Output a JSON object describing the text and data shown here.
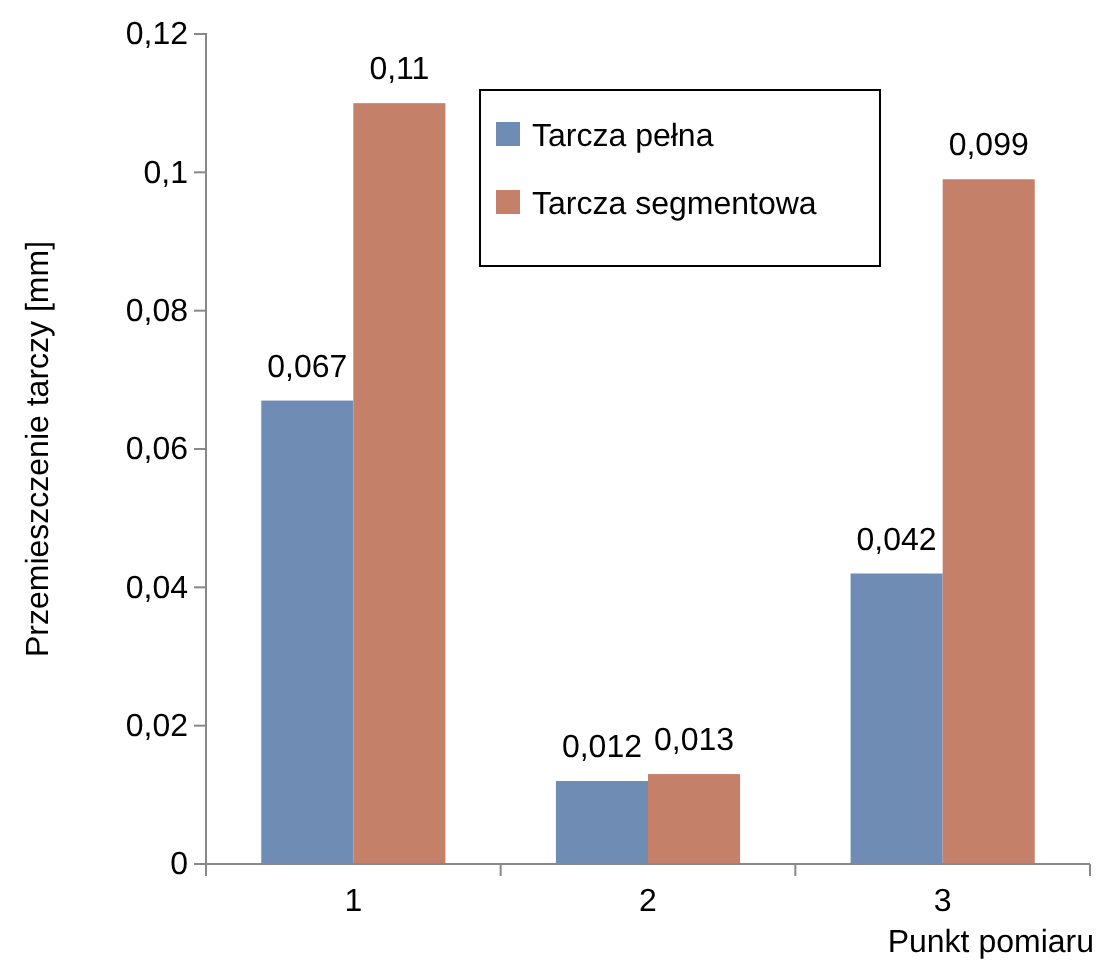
{
  "chart_data": {
    "type": "bar",
    "xlabel": "Punkt pomiaru",
    "ylabel": "Przemieszczenie tarczy [mm]",
    "categories": [
      "1",
      "2",
      "3"
    ],
    "series": [
      {
        "name": "Tarcza pełna",
        "color": "#6f8cb4",
        "values": [
          0.067,
          0.012,
          0.042
        ],
        "value_labels": [
          "0,067",
          "0,012",
          "0,042"
        ]
      },
      {
        "name": "Tarcza segmentowa",
        "color": "#c5806a",
        "values": [
          0.11,
          0.013,
          0.099
        ],
        "value_labels": [
          "0,11",
          "0,013",
          "0,099"
        ]
      }
    ],
    "ylim": [
      0,
      0.12
    ],
    "yticks": [
      {
        "value": 0,
        "label": "0"
      },
      {
        "value": 0.02,
        "label": "0,02"
      },
      {
        "value": 0.04,
        "label": "0,04"
      },
      {
        "value": 0.06,
        "label": "0,06"
      },
      {
        "value": 0.08,
        "label": "0,08"
      },
      {
        "value": 0.1,
        "label": "0,1"
      },
      {
        "value": 0.12,
        "label": "0,12"
      }
    ],
    "grid": false,
    "legend": "top right"
  }
}
